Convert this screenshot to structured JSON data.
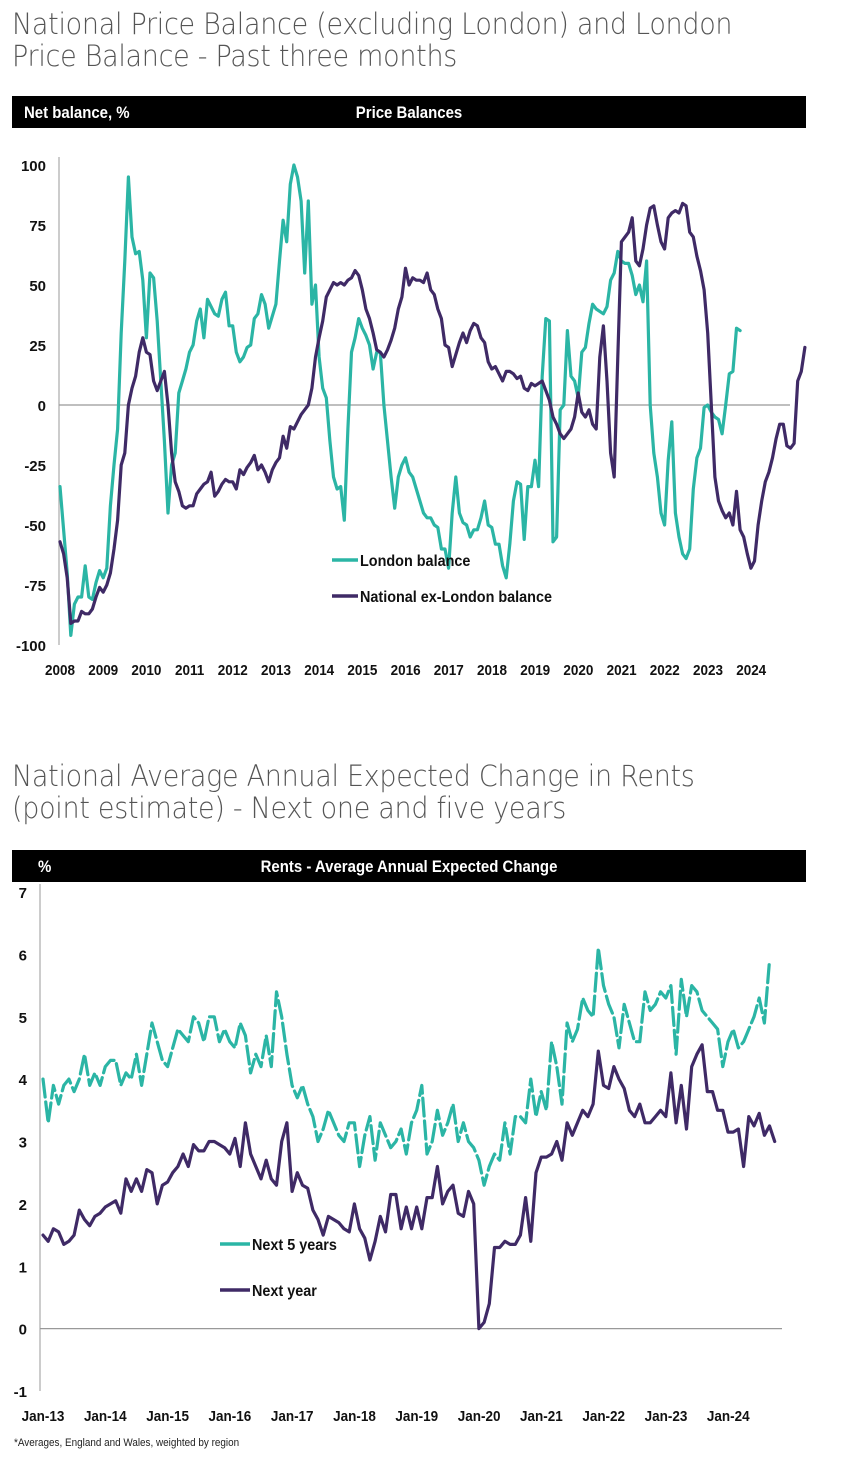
{
  "chart1": {
    "section_title_line1": "National Price Balance (excluding London) and London",
    "section_title_line2": "Price Balance - Past three months",
    "header_unit": "Net balance, %",
    "header_title": "Price Balances"
  },
  "chart2": {
    "section_title_line1": "National Average Annual Expected Change in Rents",
    "section_title_line2": "(point estimate) - Next one and five years",
    "header_unit": "%",
    "header_title": "Rents  -  Average Annual Expected Change"
  },
  "footnote": "*Averages, England and Wales, weighted by region",
  "colors": {
    "teal": "#2bb5a5",
    "purple": "#3f2a66",
    "axis": "#999999",
    "header_bg": "#000000"
  },
  "chart_data": [
    {
      "type": "line",
      "title": "Price Balances",
      "ylabel": "Net balance, %",
      "xlabel": "",
      "ylim": [
        -100,
        100
      ],
      "yticks": [
        100,
        75,
        50,
        25,
        0,
        -25,
        -50,
        -75,
        -100
      ],
      "xlim": [
        2008.0,
        2024.8
      ],
      "xtick_labels": [
        "2008",
        "2009",
        "2010",
        "2011",
        "2012",
        "2013",
        "2014",
        "2015",
        "2016",
        "2017",
        "2018",
        "2019",
        "2020",
        "2021",
        "2022",
        "2023",
        "2024"
      ],
      "grid": false,
      "legend_position": "bottom-center",
      "x_step_note": "approx. monthly, start Jan 2008",
      "series": [
        {
          "name": "London balance",
          "color": "#2bb5a5",
          "dashed": false,
          "x_start": 2008.0,
          "x_step": 0.0833,
          "values": [
            -34,
            -52,
            -70,
            -96,
            -83,
            -80,
            -80,
            -67,
            -80,
            -81,
            -74,
            -69,
            -72,
            -68,
            -42,
            -25,
            -10,
            30,
            60,
            95,
            70,
            63,
            64,
            52,
            28,
            55,
            53,
            35,
            10,
            -15,
            -45,
            -25,
            -20,
            5,
            10,
            15,
            22,
            25,
            35,
            40,
            28,
            44,
            41,
            38,
            37,
            44,
            47,
            33,
            33,
            22,
            18,
            20,
            24,
            25,
            36,
            38,
            46,
            42,
            32,
            37,
            42,
            60,
            77,
            68,
            92,
            100,
            95,
            85,
            55,
            85,
            42,
            50,
            20,
            7,
            3,
            -15,
            -30,
            -35,
            -34,
            -48,
            -10,
            22,
            28,
            36,
            32,
            29,
            25,
            15,
            22,
            22,
            0,
            -15,
            -30,
            -43,
            -30,
            -25,
            -22,
            -28,
            -30,
            -35,
            -40,
            -45,
            -47,
            -47,
            -50,
            -51,
            -60,
            -60,
            -68,
            -45,
            -30,
            -45,
            -49,
            -50,
            -55,
            -52,
            -52,
            -47,
            -40,
            -50,
            -51,
            -58,
            -58,
            -67,
            -72,
            -58,
            -40,
            -32,
            -33,
            -56,
            -34,
            -34,
            -23,
            -34,
            12,
            36,
            35,
            -57,
            -55,
            -2,
            0,
            31,
            12,
            10,
            3,
            22,
            24,
            34,
            42,
            40,
            39,
            38,
            41,
            52,
            55,
            64,
            60,
            59,
            59,
            54,
            46,
            50,
            43,
            60,
            0,
            -20,
            -30,
            -45,
            -50,
            -23,
            -7,
            -45,
            -55,
            -62,
            -64,
            -60,
            -35,
            -22,
            -18,
            -1,
            0,
            -3,
            -5,
            -6,
            -12,
            0,
            13,
            14,
            32,
            31
          ]
        },
        {
          "name": "National ex-London balance",
          "color": "#3f2a66",
          "dashed": false,
          "x_start": 2008.0,
          "x_step": 0.0833,
          "values": [
            -57,
            -62,
            -72,
            -91,
            -90,
            -90,
            -86,
            -87,
            -87,
            -85,
            -80,
            -76,
            -78,
            -75,
            -70,
            -60,
            -48,
            -25,
            -20,
            0,
            7,
            12,
            22,
            28,
            22,
            21,
            10,
            6,
            10,
            14,
            0,
            -20,
            -32,
            -36,
            -42,
            -43,
            -42,
            -42,
            -37,
            -35,
            -33,
            -32,
            -28,
            -38,
            -36,
            -33,
            -31,
            -32,
            -32,
            -35,
            -27,
            -29,
            -26,
            -24,
            -21,
            -27,
            -25,
            -28,
            -32,
            -27,
            -24,
            -22,
            -13,
            -18,
            -9,
            -10,
            -7,
            -4,
            -2,
            0,
            7,
            20,
            28,
            35,
            45,
            48,
            51,
            50,
            51,
            50,
            52,
            53,
            56,
            54,
            48,
            40,
            36,
            30,
            23,
            22,
            20,
            23,
            27,
            32,
            40,
            45,
            57,
            50,
            53,
            52,
            52,
            51,
            55,
            48,
            46,
            40,
            36,
            25,
            24,
            16,
            21,
            26,
            30,
            26,
            31,
            34,
            33,
            28,
            26,
            18,
            15,
            16,
            13,
            10,
            14,
            14,
            13,
            11,
            12,
            7,
            6,
            9,
            8,
            9,
            10,
            6,
            2,
            -5,
            -8,
            -12,
            -14,
            -12,
            -10,
            -5,
            5,
            -3,
            -5,
            -2,
            -8,
            -10,
            20,
            33,
            10,
            -20,
            -30,
            20,
            68,
            70,
            72,
            78,
            60,
            58,
            65,
            75,
            82,
            83,
            75,
            68,
            65,
            78,
            80,
            81,
            80,
            84,
            83,
            72,
            70,
            62,
            56,
            48,
            30,
            0,
            -30,
            -40,
            -44,
            -47,
            -45,
            -50,
            -36,
            -52,
            -55,
            -62,
            -68,
            -65,
            -50,
            -40,
            -32,
            -28,
            -22,
            -14,
            -8,
            -8,
            -17,
            -18,
            -16,
            10,
            14,
            24
          ]
        }
      ]
    },
    {
      "type": "line",
      "title": "Rents  -  Average Annual Expected Change",
      "ylabel": "%",
      "xlabel": "",
      "ylim": [
        -1,
        7
      ],
      "yticks": [
        7,
        6,
        5,
        4,
        3,
        2,
        1,
        0,
        -1
      ],
      "xlim": [
        2013.0,
        2024.8
      ],
      "xtick_labels": [
        "Jan-13",
        "Jan-14",
        "Jan-15",
        "Jan-16",
        "Jan-17",
        "Jan-18",
        "Jan-19",
        "Jan-20",
        "Jan-21",
        "Jan-22",
        "Jan-23",
        "Jan-24"
      ],
      "grid": false,
      "legend_position": "bottom-left",
      "footnote": "*Averages, England and Wales, weighted by region",
      "series": [
        {
          "name": "Next 5 years",
          "color": "#2bb5a5",
          "dashed": true,
          "x_start": 2013.0,
          "x_step": 0.0833,
          "values": [
            4.0,
            3.3,
            3.9,
            3.6,
            3.9,
            4.0,
            3.8,
            4.0,
            4.4,
            3.9,
            4.1,
            3.9,
            4.2,
            4.3,
            4.3,
            3.9,
            4.1,
            4.0,
            4.4,
            3.9,
            4.4,
            4.9,
            4.6,
            4.3,
            4.2,
            4.5,
            4.8,
            4.7,
            4.6,
            5.0,
            4.9,
            4.6,
            5.0,
            5.0,
            4.6,
            4.8,
            4.6,
            4.5,
            4.9,
            4.7,
            4.1,
            4.4,
            4.2,
            4.7,
            4.2,
            5.4,
            5.0,
            4.4,
            3.9,
            3.7,
            3.9,
            3.6,
            3.4,
            3.0,
            3.2,
            3.5,
            3.3,
            3.1,
            3.0,
            3.3,
            3.3,
            2.6,
            3.1,
            3.4,
            2.7,
            3.3,
            3.1,
            2.9,
            3.0,
            3.2,
            2.8,
            3.3,
            3.5,
            3.9,
            2.8,
            3.0,
            3.5,
            3.1,
            3.3,
            3.6,
            3.0,
            3.3,
            3.0,
            2.9,
            2.7,
            2.3,
            2.6,
            2.8,
            2.7,
            3.3,
            2.8,
            3.4,
            3.4,
            3.3,
            4.0,
            3.4,
            3.8,
            3.5,
            4.6,
            4.2,
            3.6,
            4.9,
            4.6,
            4.8,
            5.3,
            5.1,
            5.0,
            6.1,
            5.5,
            5.2,
            5.0,
            4.5,
            5.2,
            4.9,
            4.6,
            4.6,
            5.4,
            5.1,
            5.2,
            5.4,
            5.3,
            5.5,
            4.4,
            5.6,
            5.0,
            5.5,
            5.4,
            5.1,
            5.0,
            4.9,
            4.8,
            4.2,
            4.6,
            4.8,
            4.5,
            4.6,
            4.8,
            5.0,
            5.3,
            4.9,
            5.9
          ]
        },
        {
          "name": "Next year",
          "color": "#3f2a66",
          "dashed": false,
          "x_start": 2013.0,
          "x_step": 0.0833,
          "values": [
            1.5,
            1.4,
            1.6,
            1.55,
            1.35,
            1.4,
            1.5,
            1.9,
            1.75,
            1.65,
            1.8,
            1.85,
            1.95,
            2.0,
            2.05,
            1.85,
            2.4,
            2.2,
            2.4,
            2.2,
            2.55,
            2.5,
            2.0,
            2.3,
            2.35,
            2.5,
            2.6,
            2.8,
            2.6,
            2.95,
            2.85,
            2.85,
            3.0,
            3.0,
            2.95,
            2.9,
            2.8,
            3.05,
            2.6,
            3.3,
            2.8,
            2.6,
            2.4,
            2.7,
            2.4,
            2.3,
            3.0,
            3.3,
            2.2,
            2.5,
            2.3,
            2.25,
            1.9,
            1.75,
            1.5,
            1.8,
            1.75,
            1.7,
            1.6,
            1.55,
            2.0,
            1.6,
            1.45,
            1.1,
            1.4,
            1.8,
            1.55,
            2.15,
            2.15,
            1.6,
            1.95,
            1.6,
            1.95,
            1.6,
            2.1,
            2.1,
            2.6,
            2.0,
            2.2,
            2.3,
            1.85,
            1.8,
            2.2,
            2.0,
            0.0,
            0.1,
            0.4,
            1.3,
            1.3,
            1.4,
            1.35,
            1.35,
            1.5,
            2.1,
            1.4,
            2.5,
            2.75,
            2.75,
            2.8,
            3.0,
            2.7,
            3.3,
            3.1,
            3.3,
            3.5,
            3.4,
            3.6,
            4.45,
            3.9,
            3.85,
            4.2,
            4.0,
            3.85,
            3.5,
            3.4,
            3.6,
            3.3,
            3.3,
            3.4,
            3.5,
            3.4,
            4.1,
            3.3,
            3.9,
            3.2,
            4.2,
            4.4,
            4.55,
            3.8,
            3.8,
            3.5,
            3.5,
            3.15,
            3.15,
            3.2,
            2.6,
            3.4,
            3.25,
            3.45,
            3.1,
            3.25,
            3.0
          ]
        }
      ]
    }
  ]
}
